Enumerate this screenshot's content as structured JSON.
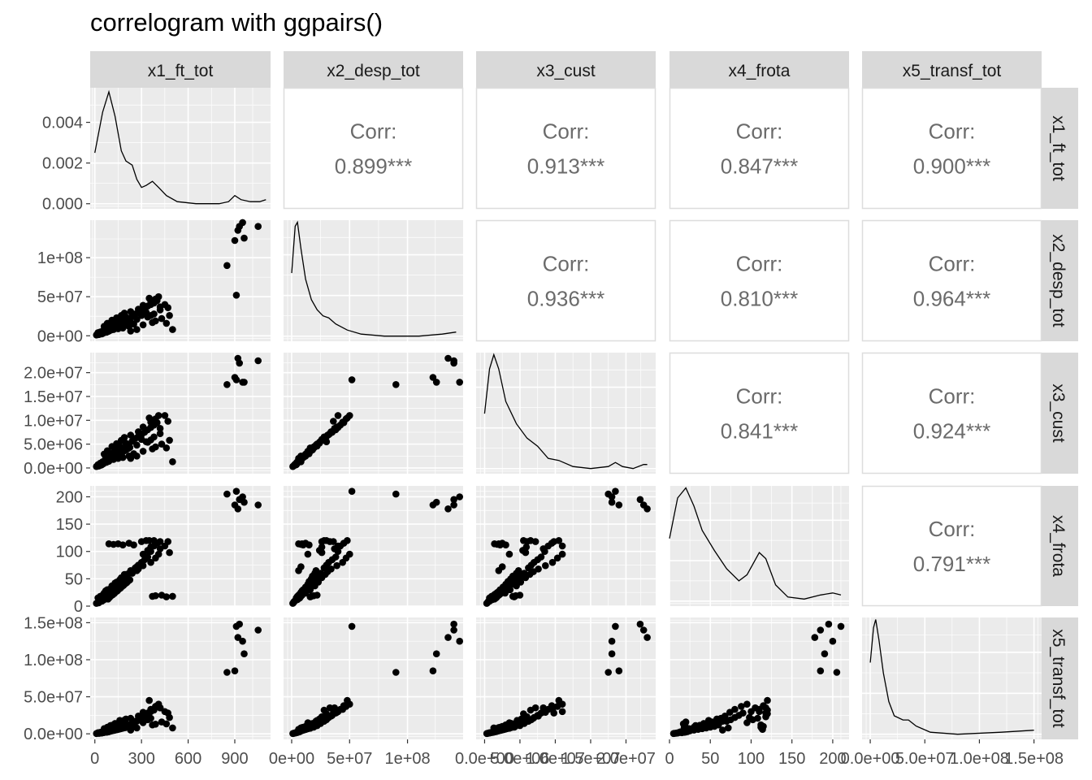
{
  "title": "correlogram with ggpairs()",
  "chart_data": {
    "type": "scatter",
    "title": "correlogram with ggpairs()",
    "variables": [
      "x1_ft_tot",
      "x2_desp_tot",
      "x3_cust",
      "x4_frota",
      "x5_transf_tot"
    ],
    "axes": {
      "x1_ft_tot": {
        "range": [
          -30,
          1130
        ],
        "ticks": [
          {
            "v": 0,
            "label": "0"
          },
          {
            "v": 300,
            "label": "300"
          },
          {
            "v": 600,
            "label": "600"
          },
          {
            "v": 900,
            "label": "900"
          }
        ]
      },
      "x2_desp_tot": {
        "range": [
          -7000000,
          148000000
        ],
        "ticks": [
          {
            "v": 0,
            "label": "0e+00"
          },
          {
            "v": 50000000,
            "label": "5e+07"
          },
          {
            "v": 100000000,
            "label": "1e+08"
          }
        ]
      },
      "x3_cust": {
        "range": [
          -1200000,
          24200000
        ],
        "ticks": [
          {
            "v": 0,
            "label": "0.0e+00"
          },
          {
            "v": 5000000,
            "label": "5.0e+06"
          },
          {
            "v": 10000000,
            "label": "1.0e+07"
          },
          {
            "v": 15000000,
            "label": "1.5e+07"
          },
          {
            "v": 20000000,
            "label": "2.0e+07"
          }
        ]
      },
      "x4_frota": {
        "range": [
          0,
          220
        ],
        "ticks": [
          {
            "v": 0,
            "label": "0"
          },
          {
            "v": 50,
            "label": "50"
          },
          {
            "v": 100,
            "label": "100"
          },
          {
            "v": 150,
            "label": "150"
          },
          {
            "v": 200,
            "label": "200"
          }
        ]
      },
      "x5_transf_tot": {
        "range": [
          -7500000,
          157000000
        ],
        "ticks": [
          {
            "v": 0,
            "label": "0.0e+00"
          },
          {
            "v": 50000000,
            "label": "5.0e+07"
          },
          {
            "v": 100000000,
            "label": "1.0e+08"
          },
          {
            "v": 150000000,
            "label": "1.5e+08"
          }
        ]
      }
    },
    "x_axis_labels": {
      "x1_ft_tot": [
        "0",
        "300",
        "600",
        "900"
      ],
      "x2_desp_tot": [
        "0e+00",
        "5e+07",
        "1e+08"
      ],
      "x3_cust": [
        "0.0e+00",
        "5.0e+06",
        "1.0e+07",
        "1.5e+07",
        "2.0e+07"
      ],
      "x4_frota": [
        "0",
        "50",
        "100",
        "150",
        "200"
      ],
      "x5_transf_tot": [
        "0.0e+00",
        "5.0e+07",
        "1.0e+08",
        "1.5e+08"
      ]
    },
    "density_ylabels": [
      "0.000",
      "0.002",
      "0.004"
    ],
    "density_yvals": [
      0,
      0.002,
      0.004
    ],
    "density_ylim": [
      -0.00025,
      0.0057
    ],
    "densities": [
      [
        [
          0,
          0.0025
        ],
        [
          50,
          0.0045
        ],
        [
          90,
          0.0055
        ],
        [
          130,
          0.0043
        ],
        [
          170,
          0.0026
        ],
        [
          200,
          0.0021
        ],
        [
          240,
          0.0019
        ],
        [
          270,
          0.0012
        ],
        [
          300,
          0.0008
        ],
        [
          330,
          0.0009
        ],
        [
          370,
          0.0011
        ],
        [
          410,
          0.0008
        ],
        [
          460,
          0.0004
        ],
        [
          530,
          0.0001
        ],
        [
          650,
          0.0
        ],
        [
          800,
          0.0
        ],
        [
          860,
          0.0001
        ],
        [
          900,
          0.0004
        ],
        [
          940,
          0.0002
        ],
        [
          1000,
          0.0001
        ],
        [
          1060,
          0.0001
        ],
        [
          1100,
          0.0002
        ]
      ],
      [
        [
          0,
          0.0031
        ],
        [
          3000000,
          0.0054
        ],
        [
          5000000,
          0.0056
        ],
        [
          8000000,
          0.0043
        ],
        [
          12000000,
          0.0028
        ],
        [
          17000000,
          0.0018
        ],
        [
          22000000,
          0.0013
        ],
        [
          27000000,
          0.001
        ],
        [
          32000000,
          0.0009
        ],
        [
          38000000,
          0.0006
        ],
        [
          48000000,
          0.0003
        ],
        [
          60000000,
          0.0001
        ],
        [
          80000000,
          0.0
        ],
        [
          110000000,
          0.0
        ],
        [
          130000000,
          0.0001
        ],
        [
          142000000,
          0.0002
        ]
      ],
      [
        [
          0,
          0.0027
        ],
        [
          700000,
          0.0049
        ],
        [
          1300000,
          0.0056
        ],
        [
          2000000,
          0.0049
        ],
        [
          3000000,
          0.0033
        ],
        [
          4500000,
          0.0022
        ],
        [
          6000000,
          0.0015
        ],
        [
          7500000,
          0.0011
        ],
        [
          9000000,
          0.0005
        ],
        [
          10500000,
          0.0004
        ],
        [
          12500000,
          0.0001
        ],
        [
          15000000,
          0.0
        ],
        [
          17500000,
          0.0001
        ],
        [
          18500000,
          0.0003
        ],
        [
          19500000,
          0.0001
        ],
        [
          21000000,
          0.0
        ],
        [
          22500000,
          0.0002
        ],
        [
          23000000,
          0.0002
        ]
      ],
      [
        [
          0,
          0.0031
        ],
        [
          10,
          0.0051
        ],
        [
          20,
          0.0056
        ],
        [
          30,
          0.0047
        ],
        [
          40,
          0.0035
        ],
        [
          55,
          0.0025
        ],
        [
          70,
          0.0016
        ],
        [
          85,
          0.001
        ],
        [
          95,
          0.0013
        ],
        [
          110,
          0.0024
        ],
        [
          118,
          0.0021
        ],
        [
          130,
          0.0008
        ],
        [
          145,
          0.0002
        ],
        [
          165,
          0.0001
        ],
        [
          185,
          0.0003
        ],
        [
          200,
          0.0004
        ],
        [
          210,
          0.0003
        ]
      ],
      [
        [
          0,
          0.0035
        ],
        [
          3000000,
          0.0052
        ],
        [
          5000000,
          0.0056
        ],
        [
          8000000,
          0.0046
        ],
        [
          12000000,
          0.003
        ],
        [
          17000000,
          0.0016
        ],
        [
          22000000,
          0.0009
        ],
        [
          30000000,
          0.0007
        ],
        [
          35000000,
          0.0007
        ],
        [
          42000000,
          0.0004
        ],
        [
          55000000,
          0.0001
        ],
        [
          80000000,
          0.0
        ],
        [
          120000000,
          0.0001
        ],
        [
          150000000,
          0.0002
        ]
      ]
    ],
    "correlations": [
      {
        "row": 0,
        "col": 1,
        "label": "Corr:",
        "value": "0.899***"
      },
      {
        "row": 0,
        "col": 2,
        "label": "Corr:",
        "value": "0.913***"
      },
      {
        "row": 0,
        "col": 3,
        "label": "Corr:",
        "value": "0.847***"
      },
      {
        "row": 0,
        "col": 4,
        "label": "Corr:",
        "value": "0.900***"
      },
      {
        "row": 1,
        "col": 2,
        "label": "Corr:",
        "value": "0.936***"
      },
      {
        "row": 1,
        "col": 3,
        "label": "Corr:",
        "value": "0.810***"
      },
      {
        "row": 1,
        "col": 4,
        "label": "Corr:",
        "value": "0.964***"
      },
      {
        "row": 2,
        "col": 3,
        "label": "Corr:",
        "value": "0.841***"
      },
      {
        "row": 2,
        "col": 4,
        "label": "Corr:",
        "value": "0.924***"
      },
      {
        "row": 3,
        "col": 4,
        "label": "Corr:",
        "value": "0.791***"
      }
    ],
    "observations": [
      [
        20,
        4000000,
        700000,
        15,
        1500000
      ],
      [
        35,
        5000000,
        1000000,
        18,
        2000000
      ],
      [
        50,
        6000000,
        1300000,
        20,
        2500000
      ],
      [
        65,
        7000000,
        1500000,
        22,
        3000000
      ],
      [
        80,
        8000000,
        1800000,
        25,
        4000000
      ],
      [
        100,
        10000000,
        2200000,
        30,
        5000000
      ],
      [
        120,
        12000000,
        2600000,
        35,
        6000000
      ],
      [
        140,
        14000000,
        3000000,
        40,
        7000000
      ],
      [
        160,
        15000000,
        3300000,
        45,
        8000000
      ],
      [
        180,
        17000000,
        3700000,
        50,
        9000000
      ],
      [
        200,
        18000000,
        4000000,
        55,
        10000000
      ],
      [
        220,
        20000000,
        4500000,
        60,
        12000000
      ],
      [
        40,
        3000000,
        600000,
        10,
        1000000
      ],
      [
        60,
        5000000,
        1100000,
        12,
        1800000
      ],
      [
        90,
        7000000,
        1600000,
        15,
        3000000
      ],
      [
        110,
        9000000,
        2000000,
        20,
        4500000
      ],
      [
        130,
        11000000,
        2400000,
        25,
        5500000
      ],
      [
        150,
        13000000,
        2800000,
        30,
        6500000
      ],
      [
        170,
        16000000,
        3500000,
        35,
        7500000
      ],
      [
        190,
        19000000,
        4200000,
        40,
        9000000
      ],
      [
        210,
        22000000,
        5000000,
        50,
        11000000
      ],
      [
        240,
        25000000,
        5600000,
        60,
        14000000
      ],
      [
        260,
        28000000,
        6200000,
        70,
        17000000
      ],
      [
        280,
        30000000,
        6600000,
        75,
        19000000
      ],
      [
        300,
        32000000,
        7000000,
        80,
        22000000
      ],
      [
        320,
        35000000,
        7500000,
        85,
        25000000
      ],
      [
        340,
        38000000,
        8000000,
        90,
        28000000
      ],
      [
        360,
        40000000,
        8500000,
        100,
        30000000
      ],
      [
        380,
        42000000,
        9000000,
        110,
        33000000
      ],
      [
        400,
        45000000,
        9500000,
        115,
        38000000
      ],
      [
        350,
        48000000,
        10500000,
        120,
        45000000
      ],
      [
        420,
        37000000,
        8300000,
        105,
        35000000
      ],
      [
        450,
        40000000,
        11000000,
        110,
        30000000
      ],
      [
        470,
        36000000,
        9800000,
        118,
        28000000
      ],
      [
        500,
        8000000,
        1300000,
        18,
        8000000
      ],
      [
        250,
        15000000,
        3000000,
        112,
        12000000
      ],
      [
        220,
        12000000,
        2500000,
        115,
        10000000
      ],
      [
        180,
        10000000,
        2200000,
        112,
        9000000
      ],
      [
        150,
        9000000,
        2000000,
        114,
        8500000
      ],
      [
        120,
        8000000,
        1800000,
        113,
        7500000
      ],
      [
        90,
        6000000,
        1400000,
        114,
        6000000
      ],
      [
        300,
        26000000,
        6000000,
        118,
        23000000
      ],
      [
        330,
        30000000,
        5500000,
        120,
        27000000
      ],
      [
        380,
        28000000,
        6500000,
        120,
        32000000
      ],
      [
        420,
        33000000,
        7200000,
        118,
        35000000
      ],
      [
        230,
        6000000,
        2000000,
        65,
        5000000
      ],
      [
        270,
        8000000,
        2500000,
        72,
        8000000
      ],
      [
        310,
        14000000,
        3500000,
        95,
        15000000
      ],
      [
        270,
        21000000,
        4800000,
        65,
        17000000
      ],
      [
        200,
        24000000,
        5200000,
        58,
        20000000
      ],
      [
        160,
        22000000,
        4600000,
        48,
        18000000
      ],
      [
        130,
        18000000,
        3800000,
        42,
        14000000
      ],
      [
        100,
        14000000,
        3100000,
        32,
        11000000
      ],
      [
        70,
        9000000,
        2100000,
        28,
        6000000
      ],
      [
        30,
        2000000,
        500000,
        8,
        800000
      ],
      [
        10,
        1000000,
        300000,
        5,
        400000
      ],
      [
        25,
        1500000,
        400000,
        6,
        600000
      ],
      [
        45,
        2500000,
        700000,
        9,
        1100000
      ],
      [
        55,
        3500000,
        900000,
        11,
        1600000
      ],
      [
        75,
        4500000,
        1200000,
        14,
        2200000
      ],
      [
        85,
        5500000,
        1400000,
        13,
        2600000
      ],
      [
        95,
        6500000,
        1700000,
        16,
        3300000
      ],
      [
        105,
        7500000,
        1900000,
        19,
        3800000
      ],
      [
        115,
        8500000,
        2100000,
        21,
        4300000
      ],
      [
        125,
        9500000,
        2300000,
        23,
        4800000
      ],
      [
        135,
        10500000,
        2500000,
        26,
        5300000
      ],
      [
        145,
        11500000,
        2700000,
        28,
        5800000
      ],
      [
        155,
        12500000,
        2900000,
        31,
        6300000
      ],
      [
        165,
        13500000,
        3100000,
        33,
        6800000
      ],
      [
        175,
        14500000,
        3300000,
        36,
        7300000
      ],
      [
        185,
        15500000,
        3500000,
        38,
        7800000
      ],
      [
        195,
        16500000,
        3700000,
        41,
        8300000
      ],
      [
        205,
        17500000,
        3900000,
        43,
        8800000
      ],
      [
        215,
        18500000,
        4100000,
        46,
        9300000
      ],
      [
        225,
        19500000,
        4300000,
        48,
        9800000
      ],
      [
        60,
        12000000,
        2900000,
        24,
        7000000
      ],
      [
        80,
        16000000,
        3600000,
        30,
        9000000
      ],
      [
        110,
        20000000,
        4500000,
        37,
        11500000
      ],
      [
        140,
        23000000,
        5100000,
        44,
        13500000
      ],
      [
        170,
        26000000,
        5800000,
        52,
        16000000
      ],
      [
        190,
        29000000,
        6400000,
        58,
        18500000
      ],
      [
        230,
        31000000,
        6900000,
        63,
        21000000
      ],
      [
        280,
        34000000,
        7600000,
        68,
        24000000
      ],
      [
        310,
        39000000,
        8600000,
        74,
        29000000
      ],
      [
        360,
        44000000,
        9600000,
        80,
        33000000
      ],
      [
        390,
        47000000,
        10300000,
        88,
        37000000
      ],
      [
        410,
        50000000,
        11000000,
        95,
        40000000
      ],
      [
        340,
        24000000,
        5400000,
        102,
        19000000
      ],
      [
        360,
        26000000,
        5900000,
        108,
        21000000
      ],
      [
        370,
        17000000,
        4000000,
        18,
        12000000
      ],
      [
        390,
        19000000,
        4400000,
        19,
        13000000
      ],
      [
        430,
        22000000,
        5000000,
        20,
        16000000
      ],
      [
        460,
        16000000,
        4200000,
        17,
        13500000
      ],
      [
        480,
        26000000,
        5800000,
        98,
        22000000
      ],
      [
        850,
        90000000,
        17500000,
        205,
        83000000
      ],
      [
        900,
        122000000,
        19000000,
        185,
        85000000
      ],
      [
        910,
        52000000,
        18500000,
        210,
        145000000
      ],
      [
        920,
        135000000,
        23000000,
        178,
        130000000
      ],
      [
        930,
        140000000,
        22000000,
        195,
        148000000
      ],
      [
        950,
        145000000,
        18000000,
        200,
        125000000
      ],
      [
        1050,
        140000000,
        22500000,
        185,
        140000000
      ],
      [
        960,
        125000000,
        18000000,
        190,
        108000000
      ]
    ]
  }
}
